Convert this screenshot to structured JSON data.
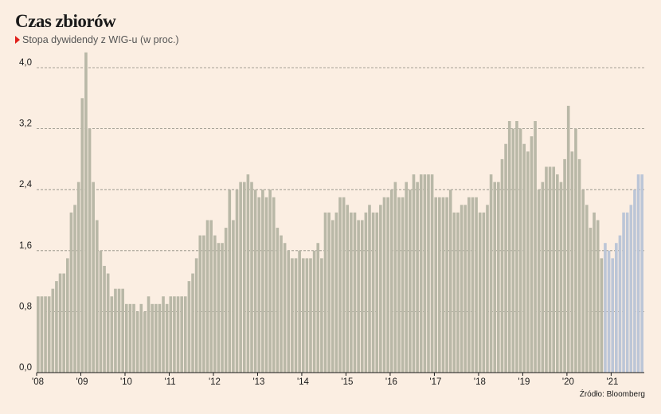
{
  "title": "Czas zbiorów",
  "subtitle": "Stopa dywidendy z WIG-u (w proc.)",
  "source": "Źródło: Bloomberg",
  "colors": {
    "history": "#b9b8a7",
    "latest": "#bcc6d7",
    "marker": "#e0201b"
  },
  "chart_data": {
    "type": "bar",
    "title": "Czas zbiorów",
    "subtitle": "Stopa dywidendy z WIG-u (w proc.)",
    "ylabel": "",
    "xlabel": "",
    "ylim": [
      0,
      4.2
    ],
    "yticks": [
      "0,0",
      "0,8",
      "1,6",
      "2,4",
      "3,2",
      "4,0"
    ],
    "ytick_values": [
      0,
      0.8,
      1.6,
      2.4,
      3.2,
      4.0
    ],
    "xticks": [
      "'08",
      "'09",
      "'10",
      "'11",
      "'12",
      "'13",
      "'14",
      "'15",
      "'16",
      "'17",
      "'18",
      "'19",
      "'20",
      "'21"
    ],
    "grid": "horizontal dashed",
    "series": [
      {
        "period": "2008–2020",
        "values": [
          1.0,
          1.0,
          1.0,
          1.0,
          1.1,
          1.2,
          1.3,
          1.3,
          1.5,
          2.1,
          2.2,
          2.5,
          3.6,
          4.2,
          3.2,
          2.5,
          2.0,
          1.6,
          1.4,
          1.3,
          1.0,
          1.1,
          1.1,
          1.1,
          0.9,
          0.9,
          0.9,
          0.8,
          0.9,
          0.8,
          1.0,
          0.9,
          0.9,
          0.9,
          1.0,
          0.9,
          1.0,
          1.0,
          1.0,
          1.0,
          1.0,
          1.2,
          1.3,
          1.5,
          1.8,
          1.8,
          2.0,
          2.0,
          1.8,
          1.7,
          1.7,
          1.9,
          2.4,
          2.0,
          2.4,
          2.5,
          2.5,
          2.6,
          2.5,
          2.4,
          2.3,
          2.4,
          2.3,
          2.4,
          2.3,
          1.9,
          1.8,
          1.7,
          1.6,
          1.5,
          1.5,
          1.6,
          1.5,
          1.5,
          1.5,
          1.6,
          1.7,
          1.5,
          2.1,
          2.1,
          2.0,
          2.1,
          2.3,
          2.3,
          2.2,
          2.1,
          2.1,
          2.0,
          2.0,
          2.1,
          2.2,
          2.1,
          2.1,
          2.2,
          2.3,
          2.3,
          2.4,
          2.5,
          2.3,
          2.3,
          2.5,
          2.4,
          2.6,
          2.5,
          2.6,
          2.6,
          2.6,
          2.6,
          2.3,
          2.3,
          2.3,
          2.3,
          2.4,
          2.1,
          2.1,
          2.2,
          2.2,
          2.3,
          2.3,
          2.3,
          2.1,
          2.1,
          2.2,
          2.6,
          2.5,
          2.5,
          2.8,
          3.0,
          3.3,
          3.2,
          3.3,
          3.2,
          3.0,
          2.9,
          3.1,
          3.3,
          2.4,
          2.5,
          2.7,
          2.7,
          2.7,
          2.6,
          2.5,
          2.8,
          3.5,
          2.9,
          3.2,
          2.8,
          2.4,
          2.2,
          1.9,
          2.1,
          2.0,
          1.5
        ]
      },
      {
        "period": "2021",
        "values": [
          1.7,
          1.6,
          1.5,
          1.7,
          1.8,
          2.1,
          2.1,
          2.2,
          2.4,
          2.6,
          2.6
        ]
      }
    ]
  }
}
